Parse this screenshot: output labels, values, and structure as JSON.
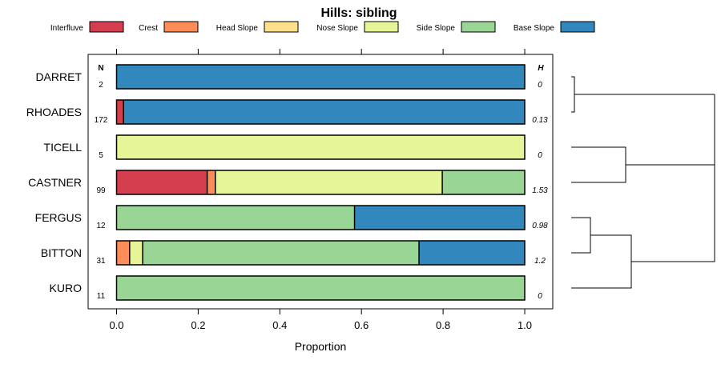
{
  "chart_data": {
    "type": "bar",
    "stacked": true,
    "orientation": "horizontal",
    "title": "Hills: sibling",
    "xlabel": "Proportion",
    "xlim": [
      0,
      1
    ],
    "xticks": [
      "0.0",
      "0.2",
      "0.4",
      "0.6",
      "0.8",
      "1.0"
    ],
    "n_header": "N",
    "h_header": "H",
    "legend": [
      {
        "name": "Interfluve",
        "color": "#D53E4F"
      },
      {
        "name": "Crest",
        "color": "#FC8D59"
      },
      {
        "name": "Head Slope",
        "color": "#FEE08B"
      },
      {
        "name": "Nose Slope",
        "color": "#E6F598"
      },
      {
        "name": "Side Slope",
        "color": "#99D594"
      },
      {
        "name": "Base Slope",
        "color": "#3288BD"
      }
    ],
    "rows": [
      {
        "label": "DARRET",
        "n": "2",
        "h": "0",
        "values": [
          0,
          0,
          0,
          0,
          0,
          1.0
        ]
      },
      {
        "label": "RHOADES",
        "n": "172",
        "h": "0.13",
        "values": [
          0.017,
          0,
          0,
          0,
          0,
          0.983
        ]
      },
      {
        "label": "TICELL",
        "n": "5",
        "h": "0",
        "values": [
          0,
          0,
          0,
          1.0,
          0,
          0
        ]
      },
      {
        "label": "CASTNER",
        "n": "99",
        "h": "1.53",
        "values": [
          0.222,
          0.02,
          0,
          0.556,
          0.202,
          0
        ]
      },
      {
        "label": "FERGUS",
        "n": "12",
        "h": "0.98",
        "values": [
          0,
          0,
          0,
          0,
          0.583,
          0.417
        ]
      },
      {
        "label": "BITTON",
        "n": "31",
        "h": "1.2",
        "values": [
          0,
          0.032,
          0,
          0.032,
          0.677,
          0.259
        ]
      },
      {
        "label": "KURO",
        "n": "11",
        "h": "0",
        "values": [
          0,
          0,
          0,
          0,
          1.0,
          0
        ]
      }
    ]
  }
}
